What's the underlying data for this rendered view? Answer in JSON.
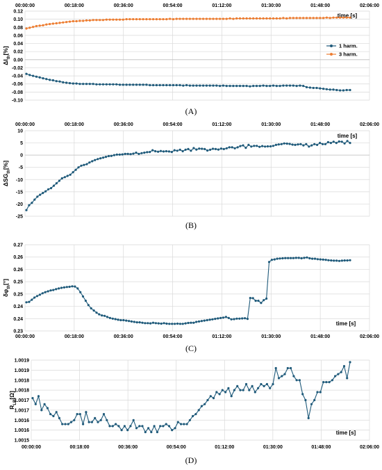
{
  "chart_data": [
    {
      "type": "line",
      "panel": "(A)",
      "ylabel_main": "ΔI",
      "ylabel_sub": "th",
      "ylabel_tail": "[%]",
      "xlabel": "time [s]",
      "ylim": [
        -0.1,
        0.12
      ],
      "yticks": [
        "0.12",
        "0.10",
        "0.08",
        "0.06",
        "0.04",
        "0.02",
        "0.00",
        "-0.02",
        "-0.04",
        "-0.06",
        "-0.08",
        "-0.10"
      ],
      "xticks": [
        "00:00:00",
        "00:18:00",
        "00:36:00",
        "00:54:00",
        "01:12:00",
        "01:30:00",
        "01:48:00",
        "02:06:00"
      ],
      "x_axis_position": "top",
      "legend_position": "right",
      "series": [
        {
          "name": "1 harm.",
          "color": "#1f5a7a",
          "values": [
            -0.035,
            -0.038,
            -0.04,
            -0.042,
            -0.044,
            -0.046,
            -0.048,
            -0.05,
            -0.051,
            -0.053,
            -0.054,
            -0.056,
            -0.057,
            -0.058,
            -0.059,
            -0.059,
            -0.06,
            -0.06,
            -0.06,
            -0.06,
            -0.06,
            -0.061,
            -0.061,
            -0.061,
            -0.061,
            -0.061,
            -0.061,
            -0.061,
            -0.062,
            -0.062,
            -0.062,
            -0.062,
            -0.062,
            -0.062,
            -0.062,
            -0.062,
            -0.062,
            -0.063,
            -0.063,
            -0.063,
            -0.063,
            -0.063,
            -0.063,
            -0.063,
            -0.063,
            -0.063,
            -0.063,
            -0.064,
            -0.063,
            -0.064,
            -0.064,
            -0.064,
            -0.064,
            -0.064,
            -0.064,
            -0.064,
            -0.064,
            -0.064,
            -0.065,
            -0.064,
            -0.065,
            -0.065,
            -0.065,
            -0.065,
            -0.065,
            -0.065,
            -0.065,
            -0.066,
            -0.065,
            -0.065,
            -0.065,
            -0.064,
            -0.065,
            -0.065,
            -0.064,
            -0.065,
            -0.065,
            -0.064,
            -0.064,
            -0.064,
            -0.064,
            -0.065,
            -0.064,
            -0.065,
            -0.068,
            -0.069,
            -0.07,
            -0.07,
            -0.071,
            -0.072,
            -0.073,
            -0.074,
            -0.074,
            -0.075,
            -0.076,
            -0.076,
            -0.075,
            -0.075
          ]
        },
        {
          "name": "3 harm.",
          "color": "#ed7d31",
          "values": [
            0.077,
            0.079,
            0.081,
            0.083,
            0.084,
            0.085,
            0.087,
            0.088,
            0.089,
            0.09,
            0.091,
            0.092,
            0.093,
            0.094,
            0.095,
            0.095,
            0.096,
            0.096,
            0.097,
            0.097,
            0.098,
            0.098,
            0.098,
            0.098,
            0.099,
            0.099,
            0.099,
            0.099,
            0.099,
            0.099,
            0.1,
            0.1,
            0.1,
            0.1,
            0.1,
            0.1,
            0.1,
            0.1,
            0.1,
            0.1,
            0.1,
            0.1,
            0.1,
            0.101,
            0.1,
            0.101,
            0.101,
            0.101,
            0.101,
            0.101,
            0.101,
            0.101,
            0.101,
            0.101,
            0.101,
            0.101,
            0.101,
            0.101,
            0.101,
            0.101,
            0.101,
            0.102,
            0.101,
            0.102,
            0.102,
            0.102,
            0.102,
            0.102,
            0.102,
            0.102,
            0.102,
            0.102,
            0.102,
            0.102,
            0.102,
            0.102,
            0.102,
            0.103,
            0.102,
            0.103,
            0.103,
            0.103,
            0.103,
            0.103,
            0.103,
            0.103,
            0.103,
            0.103,
            0.103,
            0.103,
            0.104,
            0.103,
            0.104,
            0.104,
            0.104,
            0.104,
            0.104,
            0.104
          ]
        }
      ]
    },
    {
      "type": "line",
      "panel": "(B)",
      "ylabel_main": "ΔSG",
      "ylabel_sub": "th",
      "ylabel_tail": "[%]",
      "xlabel": "time [s]",
      "ylim": [
        -25,
        10
      ],
      "yticks": [
        "10",
        "5",
        "0",
        "-5",
        "-10",
        "-15",
        "-20",
        "-25"
      ],
      "xticks": [
        "00:00:00",
        "00:18:00",
        "00:36:00",
        "00:54:00",
        "01:12:00",
        "01:30:00",
        "01:48:00",
        "02:06:00"
      ],
      "x_axis_position": "top",
      "series": [
        {
          "name": "",
          "color": "#1f5a7a",
          "values": [
            -22.5,
            -20.5,
            -19.5,
            -18.2,
            -17.0,
            -16.2,
            -15.5,
            -14.8,
            -14.0,
            -13.5,
            -12.5,
            -11.5,
            -10.5,
            -9.5,
            -9.0,
            -8.5,
            -8.0,
            -7.0,
            -6.0,
            -5.0,
            -4.3,
            -4.0,
            -3.7,
            -3.0,
            -2.5,
            -2.0,
            -1.6,
            -1.3,
            -1.0,
            -0.7,
            -0.4,
            -0.3,
            0.0,
            0.2,
            0.2,
            0.3,
            0.5,
            0.5,
            0.4,
            0.6,
            1.0,
            0.5,
            0.8,
            1.0,
            1.2,
            1.3,
            2.0,
            1.6,
            1.4,
            1.7,
            1.5,
            1.6,
            1.5,
            1.3,
            2.0,
            1.8,
            2.2,
            1.6,
            2.2,
            2.5,
            1.8,
            2.9,
            2.3,
            2.7,
            2.6,
            2.5,
            1.9,
            2.2,
            2.6,
            2.5,
            2.3,
            2.7,
            2.5,
            2.8,
            3.2,
            3.2,
            2.8,
            3.2,
            3.7,
            4.0,
            3.0,
            4.2,
            3.5,
            3.8,
            3.8,
            3.4,
            3.7,
            3.5,
            3.6,
            3.6,
            3.8,
            4.2,
            4.4,
            4.5,
            4.8,
            4.7,
            4.6,
            4.3,
            4.2,
            4.4,
            4.5,
            4.0,
            4.5,
            3.5,
            4.0,
            4.5,
            4.2,
            5.0,
            4.5,
            4.5,
            5.3,
            5.0,
            5.5,
            5.0,
            5.6,
            5.5,
            4.8,
            5.8,
            5.0
          ]
        }
      ]
    },
    {
      "type": "line",
      "panel": "(C)",
      "ylabel_main": "δφ",
      "ylabel_sub": "th",
      "ylabel_tail": "[°]",
      "xlabel": "time [s]",
      "ylim": [
        0.23,
        0.27
      ],
      "yticks": [
        "0.27",
        "0.26",
        "0.26",
        "0.25",
        "0.25",
        "0.24",
        "0.24",
        "0.23"
      ],
      "xticks": [
        "00:00:00",
        "00:18:00",
        "00:36:00",
        "00:54:00",
        "01:12:00",
        "01:30:00",
        "01:48:00",
        "02:06:00"
      ],
      "x_axis_position": "bottom",
      "series": [
        {
          "name": "",
          "color": "#1f5a7a",
          "values": [
            0.2433,
            0.2435,
            0.2445,
            0.2455,
            0.2462,
            0.2468,
            0.2475,
            0.248,
            0.2484,
            0.2488,
            0.249,
            0.2494,
            0.2497,
            0.25,
            0.2502,
            0.2504,
            0.2505,
            0.2507,
            0.2506,
            0.2497,
            0.248,
            0.246,
            0.244,
            0.242,
            0.2405,
            0.2395,
            0.2385,
            0.2377,
            0.2372,
            0.237,
            0.2365,
            0.236,
            0.2357,
            0.2355,
            0.2352,
            0.235,
            0.235,
            0.2348,
            0.2346,
            0.2344,
            0.2342,
            0.234,
            0.234,
            0.2338,
            0.2336,
            0.2336,
            0.2335,
            0.2338,
            0.2336,
            0.2335,
            0.2334,
            0.2336,
            0.2334,
            0.2333,
            0.2333,
            0.2333,
            0.2334,
            0.2333,
            0.2333,
            0.2335,
            0.2337,
            0.2338,
            0.2338,
            0.2342,
            0.2344,
            0.2346,
            0.2348,
            0.235,
            0.2352,
            0.2354,
            0.2356,
            0.2358,
            0.236,
            0.2362,
            0.2365,
            0.236,
            0.2354,
            0.2355,
            0.2357,
            0.2357,
            0.2358,
            0.2359,
            0.2356,
            0.2453,
            0.2452,
            0.244,
            0.244,
            0.243,
            0.2443,
            0.245,
            0.262,
            0.263,
            0.2632,
            0.2635,
            0.2636,
            0.2637,
            0.2638,
            0.2638,
            0.2638,
            0.2638,
            0.2639,
            0.2639,
            0.2637,
            0.2639,
            0.2641,
            0.2637,
            0.2635,
            0.2635,
            0.2633,
            0.2632,
            0.2631,
            0.263,
            0.2628,
            0.2627,
            0.2626,
            0.2626,
            0.2625,
            0.2626,
            0.2627,
            0.2627,
            0.2628
          ]
        }
      ]
    },
    {
      "type": "line",
      "panel": "(D)",
      "ylabel_main": "R",
      "ylabel_sub": "LR",
      "ylabel_tail": "[Ω]",
      "xlabel": "time [s]",
      "ylim": [
        1.0015,
        1.0019
      ],
      "yticks": [
        "1.0019",
        "1.0019",
        "1.0018",
        "1.0018",
        "1.0017",
        "1.0017",
        "1.0016",
        "1.0016",
        "1.0015"
      ],
      "xticks": [
        "00:00:00",
        "00:18:00",
        "00:36:00",
        "00:54:00",
        "01:12:00",
        "01:30:00",
        "01:48:00",
        "02:06:00"
      ],
      "x_axis_position": "bottom",
      "series": [
        {
          "name": "",
          "color": "#1f5a7a",
          "values": [
            1.00171,
            1.00168,
            1.00172,
            1.00165,
            1.00168,
            1.00166,
            1.00163,
            1.00162,
            1.00164,
            1.00161,
            1.00158,
            1.00158,
            1.00158,
            1.00159,
            1.0016,
            1.00163,
            1.00163,
            1.00158,
            1.00164,
            1.00159,
            1.00159,
            1.00161,
            1.00159,
            1.0016,
            1.00163,
            1.0016,
            1.00157,
            1.00157,
            1.00158,
            1.00157,
            1.00155,
            1.00157,
            1.00155,
            1.00157,
            1.0016,
            1.00156,
            1.00157,
            1.00157,
            1.00154,
            1.00156,
            1.00154,
            1.00157,
            1.00154,
            1.00157,
            1.00157,
            1.00158,
            1.00157,
            1.00155,
            1.00156,
            1.00159,
            1.00158,
            1.00158,
            1.00158,
            1.0016,
            1.00162,
            1.00163,
            1.00165,
            1.00167,
            1.00168,
            1.0017,
            1.00172,
            1.00171,
            1.00174,
            1.00173,
            1.00175,
            1.00174,
            1.00176,
            1.00172,
            1.00175,
            1.00177,
            1.00175,
            1.00175,
            1.00178,
            1.00175,
            1.00177,
            1.00174,
            1.00176,
            1.00178,
            1.00177,
            1.00178,
            1.00176,
            1.00178,
            1.00186,
            1.00181,
            1.00182,
            1.00183,
            1.00186,
            1.00186,
            1.00182,
            1.0018,
            1.0018,
            1.00173,
            1.0017,
            1.00161,
            1.00168,
            1.0017,
            1.00174,
            1.00174,
            1.00179,
            1.00179,
            1.00179,
            1.0018,
            1.00182,
            1.00183,
            1.00184,
            1.00187,
            1.00181,
            1.00189
          ]
        }
      ]
    }
  ]
}
